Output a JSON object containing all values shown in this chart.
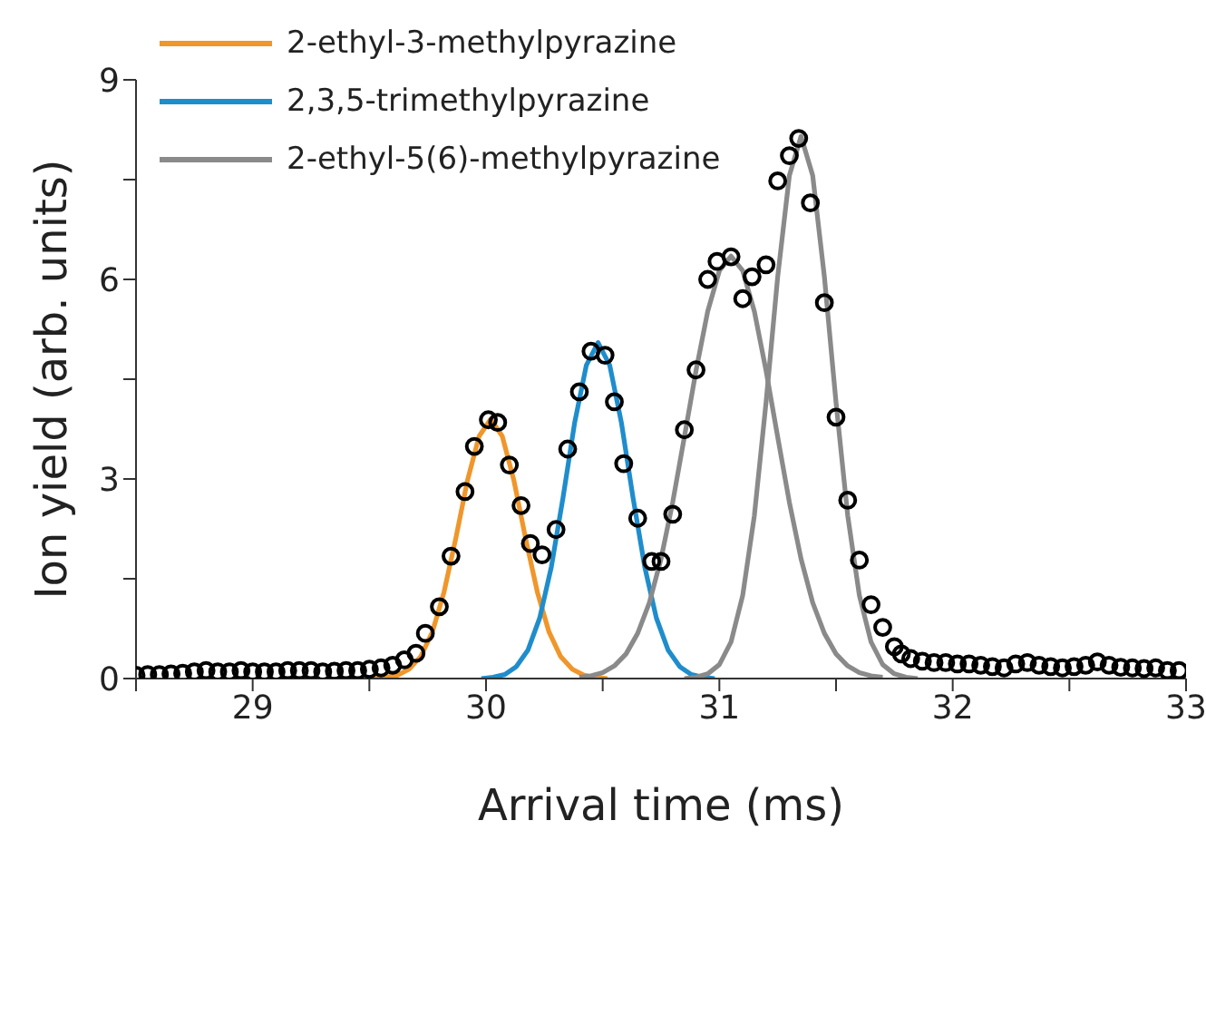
{
  "chart_data": {
    "type": "line",
    "xlabel": "Arrival time (ms)",
    "ylabel": "Ion yield (arb. units)",
    "xlim": [
      28.5,
      33
    ],
    "xticks": [
      {
        "value": 28.5,
        "label": null
      },
      29,
      {
        "value": 29.5,
        "label": null
      },
      30,
      {
        "value": 30.5,
        "label": null
      },
      31,
      {
        "value": 31.5,
        "label": null
      },
      32,
      {
        "value": 32.5,
        "label": null
      },
      33
    ],
    "ylim": [
      0,
      9
    ],
    "yticks": [
      0,
      {
        "value": 1.5,
        "label": null
      },
      3,
      {
        "value": 4.5,
        "label": null
      },
      6,
      {
        "value": 7.5,
        "label": null
      },
      9
    ],
    "legend": "top left",
    "line_style": "solid",
    "series": [
      {
        "type": "scatter",
        "marker": "circle",
        "color": "#000000",
        "x": [
          28.5,
          28.55,
          28.6,
          28.65,
          28.7,
          28.75,
          28.8,
          28.85,
          28.9,
          28.95,
          29.0,
          29.05,
          29.1,
          29.15,
          29.2,
          29.25,
          29.3,
          29.35,
          29.4,
          29.45,
          29.5,
          29.55,
          29.6,
          29.65,
          29.7,
          29.74,
          29.8,
          29.85,
          29.91,
          29.95,
          30.01,
          30.05,
          30.1,
          30.15,
          30.19,
          30.24,
          30.3,
          30.35,
          30.4,
          30.45,
          30.51,
          30.55,
          30.59,
          30.65,
          30.71,
          30.75,
          30.8,
          30.85,
          30.9,
          30.95,
          30.99,
          31.05,
          31.1,
          31.14,
          31.2,
          31.25,
          31.3,
          31.34,
          31.39,
          31.45,
          31.5,
          31.55,
          31.6,
          31.65,
          31.7,
          31.75,
          31.78,
          31.82,
          31.87,
          31.92,
          31.97,
          32.02,
          32.07,
          32.12,
          32.17,
          32.22,
          32.27,
          32.32,
          32.37,
          32.42,
          32.47,
          32.52,
          32.57,
          32.62,
          32.67,
          32.72,
          32.77,
          32.82,
          32.87,
          32.92,
          32.97
        ],
        "values": [
          0.05,
          0.06,
          0.06,
          0.07,
          0.08,
          0.1,
          0.12,
          0.1,
          0.1,
          0.12,
          0.1,
          0.1,
          0.1,
          0.12,
          0.12,
          0.12,
          0.1,
          0.11,
          0.12,
          0.12,
          0.14,
          0.16,
          0.2,
          0.28,
          0.38,
          0.68,
          1.08,
          1.84,
          2.81,
          3.49,
          3.89,
          3.85,
          3.21,
          2.6,
          2.03,
          1.86,
          2.24,
          3.45,
          4.31,
          4.92,
          4.86,
          4.16,
          3.23,
          2.41,
          1.76,
          1.76,
          2.47,
          3.74,
          4.64,
          6.0,
          6.27,
          6.34,
          5.71,
          6.04,
          6.22,
          7.48,
          7.86,
          8.12,
          7.15,
          5.65,
          3.93,
          2.68,
          1.78,
          1.11,
          0.77,
          0.48,
          0.37,
          0.3,
          0.26,
          0.24,
          0.24,
          0.22,
          0.22,
          0.2,
          0.18,
          0.16,
          0.22,
          0.24,
          0.2,
          0.18,
          0.16,
          0.18,
          0.2,
          0.25,
          0.2,
          0.17,
          0.16,
          0.15,
          0.16,
          0.12,
          0.12
        ]
      },
      {
        "name": "2-ethyl-3-methylpyrazine",
        "color": "#f0962a",
        "x": [
          29.52,
          29.57,
          29.62,
          29.67,
          29.72,
          29.77,
          29.82,
          29.87,
          29.92,
          29.97,
          30.02,
          30.07,
          30.12,
          30.17,
          30.22,
          30.27,
          30.32,
          30.37,
          30.42,
          30.47,
          30.52
        ],
        "values": [
          0,
          0.02,
          0.05,
          0.14,
          0.33,
          0.7,
          1.3,
          2.1,
          2.97,
          3.64,
          3.9,
          3.64,
          2.97,
          2.1,
          1.3,
          0.7,
          0.33,
          0.14,
          0.05,
          0.02,
          0
        ]
      },
      {
        "name": "2,3,5-trimethylpyrazine",
        "color": "#1f8dcc",
        "x": [
          29.98,
          30.03,
          30.08,
          30.13,
          30.18,
          30.23,
          30.28,
          30.33,
          30.38,
          30.43,
          30.48,
          30.53,
          30.58,
          30.63,
          30.68,
          30.73,
          30.78,
          30.83,
          30.88,
          30.93,
          30.98
        ],
        "values": [
          0,
          0.02,
          0.06,
          0.18,
          0.43,
          0.91,
          1.68,
          2.72,
          3.85,
          4.71,
          5.05,
          4.71,
          3.85,
          2.72,
          1.68,
          0.91,
          0.43,
          0.18,
          0.06,
          0.02,
          0
        ]
      },
      {
        "name": "2-ethyl-5(6)-methylpyrazine",
        "color": "#8a8a8a",
        "x": [
          30.4,
          30.45,
          30.5,
          30.55,
          30.6,
          30.65,
          30.7,
          30.75,
          30.8,
          30.85,
          30.9,
          30.95,
          31.0,
          31.05,
          31.1,
          31.15,
          31.2,
          31.25,
          31.3,
          31.35,
          31.4,
          31.45,
          31.5,
          31.55,
          31.6,
          31.65,
          31.7
        ],
        "values": [
          0.02,
          0.04,
          0.09,
          0.19,
          0.37,
          0.68,
          1.14,
          1.8,
          2.65,
          3.63,
          4.63,
          5.52,
          6.13,
          6.35,
          6.13,
          5.52,
          4.63,
          3.63,
          2.65,
          1.8,
          1.14,
          0.68,
          0.37,
          0.19,
          0.09,
          0.04,
          0.02
        ]
      },
      {
        "color": "#8a8a8a",
        "x": [
          30.85,
          30.9,
          30.95,
          31.0,
          31.05,
          31.1,
          31.15,
          31.2,
          31.25,
          31.3,
          31.35,
          31.4,
          31.45,
          31.5,
          31.55,
          31.6,
          31.65,
          31.7,
          31.75,
          31.8,
          31.85
        ],
        "values": [
          0,
          0.02,
          0.07,
          0.21,
          0.55,
          1.25,
          2.45,
          4.15,
          6.04,
          7.56,
          8.15,
          7.56,
          6.04,
          4.15,
          2.45,
          1.25,
          0.55,
          0.21,
          0.07,
          0.02,
          0
        ]
      }
    ]
  }
}
